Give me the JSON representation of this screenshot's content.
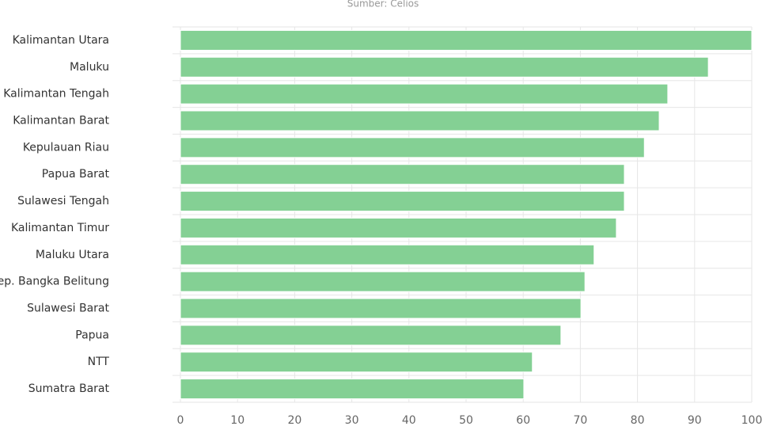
{
  "chart_data": {
    "type": "bar",
    "orientation": "horizontal",
    "subtitle": "Sumber: Celios",
    "categories": [
      "Kalimantan Utara",
      "Maluku",
      "Kalimantan Tengah",
      "Kalimantan Barat",
      "Kepulauan Riau",
      "Papua Barat",
      "Sulawesi Tengah",
      "Kalimantan Timur",
      "Maluku Utara",
      "Kep. Bangka Belitung",
      "Sulawesi Barat",
      "Papua",
      "NTT",
      "Sumatra Barat"
    ],
    "values": [
      100,
      92.4,
      85.3,
      83.8,
      81.2,
      77.7,
      77.7,
      76.3,
      72.4,
      70.8,
      70.1,
      66.6,
      61.6,
      60.1
    ],
    "color": "#84d094",
    "xlim": [
      0,
      100
    ],
    "xticks": [
      0,
      10,
      20,
      30,
      40,
      50,
      60,
      70,
      80,
      90,
      100
    ],
    "grid": true
  }
}
